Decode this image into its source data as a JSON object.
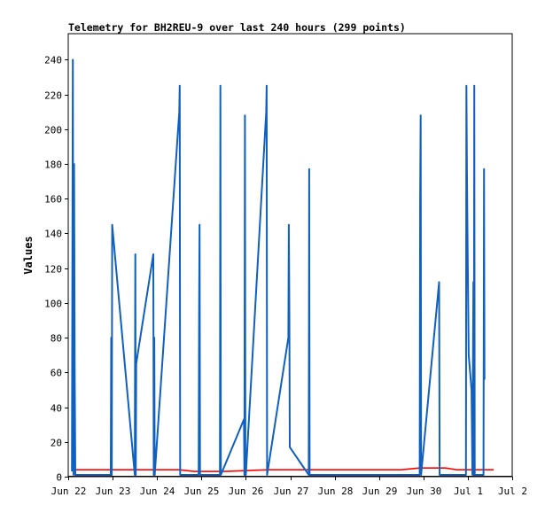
{
  "chart_data": {
    "type": "line",
    "title": "Telemetry for BH2REU-9 over last 240 hours (299 points)",
    "xlabel": "",
    "ylabel": "Values",
    "xlim": [
      "2022-06-22T00:00",
      "2022-07-02T00:00"
    ],
    "ylim": [
      0,
      255
    ],
    "x_ticks": [
      {
        "t": "2022-06-22T00:00",
        "label": "Jun 22"
      },
      {
        "t": "2022-06-23T00:00",
        "label": "Jun 23"
      },
      {
        "t": "2022-06-24T00:00",
        "label": "Jun 24"
      },
      {
        "t": "2022-06-25T00:00",
        "label": "Jun 25"
      },
      {
        "t": "2022-06-26T00:00",
        "label": "Jun 26"
      },
      {
        "t": "2022-06-27T00:00",
        "label": "Jun 27"
      },
      {
        "t": "2022-06-28T00:00",
        "label": "Jun 28"
      },
      {
        "t": "2022-06-29T00:00",
        "label": "Jun 29"
      },
      {
        "t": "2022-06-30T00:00",
        "label": "Jun 30"
      },
      {
        "t": "2022-07-01T00:00",
        "label": "Jul 1"
      },
      {
        "t": "2022-07-02T00:00",
        "label": "Jul 2"
      }
    ],
    "y_ticks": [
      0,
      20,
      40,
      60,
      80,
      100,
      120,
      140,
      160,
      180,
      200,
      220,
      240
    ],
    "grid": false,
    "legend": "none",
    "series": [
      {
        "color": "#ff0000",
        "points": [
          [
            "2022-06-22T02:00",
            4
          ],
          [
            "2022-06-22T20:00",
            4
          ],
          [
            "2022-06-23T18:00",
            4
          ],
          [
            "2022-06-24T12:00",
            4
          ],
          [
            "2022-06-24T20:00",
            3
          ],
          [
            "2022-06-25T12:00",
            3
          ],
          [
            "2022-06-26T12:00",
            4
          ],
          [
            "2022-06-27T12:00",
            4
          ],
          [
            "2022-06-28T12:00",
            4
          ],
          [
            "2022-06-29T12:00",
            4
          ],
          [
            "2022-06-29T22:00",
            5
          ],
          [
            "2022-06-30T12:00",
            5
          ],
          [
            "2022-06-30T18:00",
            4
          ],
          [
            "2022-07-01T12:00",
            4
          ],
          [
            "2022-07-01T14:00",
            4
          ]
        ]
      },
      {
        "color": "#1060c0",
        "points": [
          [
            "2022-06-22T02:00",
            3
          ],
          [
            "2022-06-22T02:30",
            240
          ],
          [
            "2022-06-22T02:50",
            1
          ],
          [
            "2022-06-22T03:10",
            180
          ],
          [
            "2022-06-22T03:30",
            60
          ],
          [
            "2022-06-22T03:50",
            1
          ],
          [
            "2022-06-22T04:20",
            1
          ],
          [
            "2022-06-22T23:00",
            1
          ],
          [
            "2022-06-22T23:15",
            80
          ],
          [
            "2022-06-22T23:30",
            1
          ],
          [
            "2022-06-22T23:45",
            145
          ],
          [
            "2022-06-23T12:00",
            1
          ],
          [
            "2022-06-23T12:15",
            128
          ],
          [
            "2022-06-23T12:30",
            1
          ],
          [
            "2022-06-23T12:45",
            65
          ],
          [
            "2022-06-23T22:00",
            128
          ],
          [
            "2022-06-23T22:15",
            1
          ],
          [
            "2022-06-23T22:30",
            80
          ],
          [
            "2022-06-23T22:45",
            1
          ],
          [
            "2022-06-24T12:00",
            210
          ],
          [
            "2022-06-24T12:15",
            225
          ],
          [
            "2022-06-24T12:30",
            1
          ],
          [
            "2022-06-24T22:30",
            1
          ],
          [
            "2022-06-24T22:45",
            97
          ],
          [
            "2022-06-24T23:00",
            145
          ],
          [
            "2022-06-24T23:15",
            1
          ],
          [
            "2022-06-25T10:00",
            1
          ],
          [
            "2022-06-25T10:15",
            225
          ],
          [
            "2022-06-25T10:30",
            1
          ],
          [
            "2022-06-25T23:00",
            33
          ],
          [
            "2022-06-25T23:15",
            1
          ],
          [
            "2022-06-25T23:30",
            208
          ],
          [
            "2022-06-25T23:45",
            12
          ],
          [
            "2022-06-26T00:00",
            1
          ],
          [
            "2022-06-26T11:00",
            210
          ],
          [
            "2022-06-26T11:15",
            225
          ],
          [
            "2022-06-26T11:30",
            1
          ],
          [
            "2022-06-26T23:00",
            80
          ],
          [
            "2022-06-26T23:15",
            145
          ],
          [
            "2022-06-26T23:30",
            97
          ],
          [
            "2022-06-26T23:45",
            17
          ],
          [
            "2022-06-27T10:00",
            1
          ],
          [
            "2022-06-27T10:15",
            177
          ],
          [
            "2022-06-27T10:30",
            1
          ],
          [
            "2022-06-29T22:00",
            1
          ],
          [
            "2022-06-29T22:15",
            160
          ],
          [
            "2022-06-29T22:30",
            208
          ],
          [
            "2022-06-29T22:45",
            1
          ],
          [
            "2022-06-30T08:30",
            112
          ],
          [
            "2022-06-30T08:45",
            1
          ],
          [
            "2022-06-30T23:00",
            1
          ],
          [
            "2022-06-30T23:15",
            225
          ],
          [
            "2022-06-30T23:30",
            177
          ],
          [
            "2022-06-30T23:45",
            147
          ],
          [
            "2022-07-01T00:00",
            120
          ],
          [
            "2022-07-01T00:30",
            70
          ],
          [
            "2022-07-01T02:00",
            50
          ],
          [
            "2022-07-01T02:30",
            1
          ],
          [
            "2022-07-01T03:00",
            112
          ],
          [
            "2022-07-01T03:15",
            1
          ],
          [
            "2022-07-01T03:30",
            225
          ],
          [
            "2022-07-01T03:45",
            1
          ],
          [
            "2022-07-01T08:30",
            1
          ],
          [
            "2022-07-01T08:45",
            177
          ],
          [
            "2022-07-01T09:00",
            56
          ],
          [
            "2022-07-01T09:15",
            56
          ]
        ]
      }
    ]
  }
}
